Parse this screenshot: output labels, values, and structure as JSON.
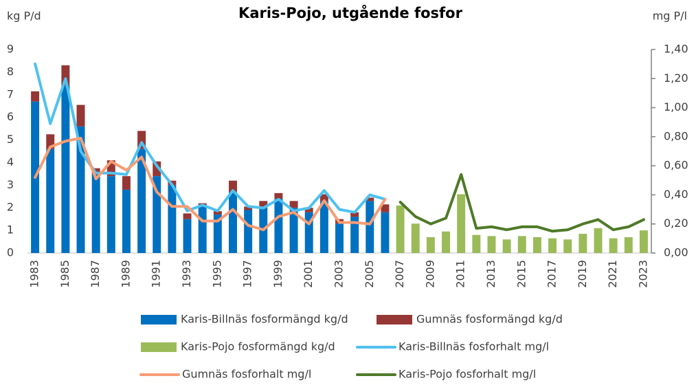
{
  "chart_data": {
    "type": "combo",
    "title": "Karis-Pojo, utgående fosfor",
    "y_label": "kg P/d",
    "y2_label": "mg P/l",
    "categories": [
      "1983",
      null,
      "1985",
      null,
      "1987",
      null,
      "1989",
      null,
      "1991",
      null,
      "1993",
      null,
      "1995",
      null,
      "1997",
      null,
      "1999",
      null,
      "2001",
      null,
      "2003",
      null,
      "2005",
      null,
      "2007",
      null,
      "2009",
      null,
      "2011",
      null,
      "2013",
      null,
      "2015",
      null,
      "2017",
      null,
      "2019",
      null,
      "2021",
      null,
      "2023"
    ],
    "ylim": [
      0,
      9
    ],
    "yticks": [
      0,
      1,
      2,
      3,
      4,
      5,
      6,
      7,
      8,
      9
    ],
    "y2lim": [
      0,
      1.4
    ],
    "y2ticks": [
      {
        "value": 0,
        "label": "0,00"
      },
      {
        "value": 0.2,
        "label": "0,20"
      },
      {
        "value": 0.4,
        "label": "0,40"
      },
      {
        "value": 0.6,
        "label": "0,60"
      },
      {
        "value": 0.8,
        "label": "0,80"
      },
      {
        "value": 1.0,
        "label": "1,00"
      },
      {
        "value": 1.2,
        "label": "1,20"
      },
      {
        "value": 1.4,
        "label": "1,40"
      }
    ],
    "grid": false,
    "legend": "bottom",
    "series": [
      {
        "name": "Karis-Billnäs fosformängd kg/d",
        "type": "bar",
        "stack": "a",
        "color": "#0070c0",
        "values": [
          6.7,
          4.6,
          7.4,
          5.6,
          3.5,
          3.4,
          2.8,
          4.6,
          3.4,
          3.0,
          1.5,
          2.1,
          1.7,
          2.7,
          1.9,
          2.0,
          2.4,
          2.0,
          1.8,
          2.3,
          1.3,
          1.6,
          2.3,
          1.8,
          null,
          null,
          null,
          null,
          null,
          null,
          null,
          null,
          null,
          null,
          null,
          null,
          null,
          null,
          null,
          null,
          null
        ]
      },
      {
        "name": "Gumnäs fosformängd kg/d",
        "type": "bar",
        "stack": "a",
        "color": "#953735",
        "values": [
          0.45,
          0.65,
          0.9,
          0.95,
          0.25,
          0.7,
          0.6,
          0.8,
          0.65,
          0.2,
          0.25,
          0.1,
          0.15,
          0.5,
          0.15,
          0.3,
          0.25,
          0.3,
          0.2,
          0.3,
          0.2,
          0.2,
          0.15,
          0.35,
          null,
          null,
          null,
          null,
          null,
          null,
          null,
          null,
          null,
          null,
          null,
          null,
          null,
          null,
          null,
          null,
          null
        ]
      },
      {
        "name": "Karis-Pojo fosformängd kg/d",
        "type": "bar",
        "stack": "a",
        "color": "#9bbb59",
        "values": [
          null,
          null,
          null,
          null,
          null,
          null,
          null,
          null,
          null,
          null,
          null,
          null,
          null,
          null,
          null,
          null,
          null,
          null,
          null,
          null,
          null,
          null,
          null,
          null,
          2.1,
          1.3,
          0.7,
          0.95,
          2.6,
          0.8,
          0.75,
          0.6,
          0.75,
          0.7,
          0.65,
          0.6,
          0.85,
          1.1,
          0.65,
          0.7,
          1.0
        ]
      },
      {
        "name": "Karis-Billnäs fosforhalt mg/l",
        "type": "line",
        "axis": "y2",
        "color": "#4fc1ef",
        "values": [
          1.3,
          0.89,
          1.2,
          0.7,
          0.55,
          0.55,
          0.54,
          0.76,
          0.6,
          0.47,
          0.29,
          0.33,
          0.29,
          0.43,
          0.32,
          0.31,
          0.37,
          0.29,
          0.31,
          0.43,
          0.3,
          0.28,
          0.4,
          0.37,
          null,
          null,
          null,
          null,
          null,
          null,
          null,
          null,
          null,
          null,
          null,
          null,
          null,
          null,
          null,
          null,
          null
        ]
      },
      {
        "name": "Gumnäs fosforhalt mg/l",
        "type": "line",
        "axis": "y2",
        "color": "#f79d74",
        "values": [
          0.52,
          0.73,
          0.77,
          0.79,
          0.51,
          0.63,
          0.57,
          0.66,
          0.42,
          0.32,
          0.32,
          0.22,
          0.22,
          0.3,
          0.19,
          0.16,
          0.25,
          0.28,
          0.2,
          0.36,
          0.21,
          0.21,
          0.2,
          0.37,
          null,
          null,
          null,
          null,
          null,
          null,
          null,
          null,
          null,
          null,
          null,
          null,
          null,
          null,
          null,
          null,
          null
        ]
      },
      {
        "name": "Karis-Pojo fosforhalt mg/l",
        "type": "line",
        "axis": "y2",
        "color": "#4f7a28",
        "values": [
          null,
          null,
          null,
          null,
          null,
          null,
          null,
          null,
          null,
          null,
          null,
          null,
          null,
          null,
          null,
          null,
          null,
          null,
          null,
          null,
          null,
          null,
          null,
          null,
          0.35,
          0.25,
          0.2,
          0.24,
          0.54,
          0.17,
          0.18,
          0.16,
          0.18,
          0.18,
          0.15,
          0.16,
          0.2,
          0.23,
          0.16,
          0.18,
          0.23
        ]
      }
    ]
  }
}
